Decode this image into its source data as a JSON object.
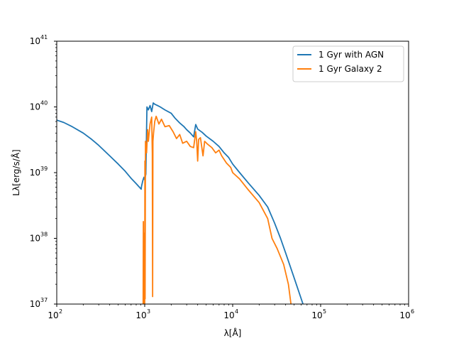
{
  "chart_data": {
    "type": "line",
    "title": "",
    "xlabel": "λ[Å]",
    "ylabel": "Lλ[erg/s/Å]",
    "xscale": "log",
    "yscale": "log",
    "xlim": [
      100,
      1000000
    ],
    "ylim": [
      1e+37,
      1e+41
    ],
    "grid": false,
    "legend_position": "top-right",
    "x_ticks": [
      {
        "value": 100,
        "base": "10",
        "exp": "2"
      },
      {
        "value": 1000,
        "base": "10",
        "exp": "3"
      },
      {
        "value": 10000,
        "base": "10",
        "exp": "4"
      },
      {
        "value": 100000,
        "base": "10",
        "exp": "5"
      },
      {
        "value": 1000000,
        "base": "10",
        "exp": "6"
      }
    ],
    "y_ticks": [
      {
        "value": 1e+37,
        "base": "10",
        "exp": "37"
      },
      {
        "value": 1e+38,
        "base": "10",
        "exp": "38"
      },
      {
        "value": 1e+39,
        "base": "10",
        "exp": "39"
      },
      {
        "value": 1e+40,
        "base": "10",
        "exp": "40"
      },
      {
        "value": 1e+41,
        "base": "10",
        "exp": "41"
      }
    ],
    "series": [
      {
        "name": "1 Gyr with AGN",
        "color": "#1f77b4",
        "points": [
          [
            100,
            6.3e+39
          ],
          [
            120,
            5.8e+39
          ],
          [
            150,
            5e+39
          ],
          [
            200,
            4e+39
          ],
          [
            250,
            3.2e+39
          ],
          [
            300,
            2.6e+39
          ],
          [
            400,
            1.8e+39
          ],
          [
            500,
            1.35e+39
          ],
          [
            600,
            1.05e+39
          ],
          [
            700,
            8.2e+38
          ],
          [
            800,
            6.8e+38
          ],
          [
            912,
            5.6e+38
          ],
          [
            920,
            6.2e+38
          ],
          [
            950,
            7.5e+38
          ],
          [
            980,
            8.5e+38
          ],
          [
            1000,
            7.8e+38
          ],
          [
            1030,
            9.5e+38
          ],
          [
            1060,
            1e+40
          ],
          [
            1100,
            9e+39
          ],
          [
            1150,
            1.05e+40
          ],
          [
            1200,
            8.5e+39
          ],
          [
            1250,
            1.15e+40
          ],
          [
            1300,
            1.1e+40
          ],
          [
            1400,
            1.05e+40
          ],
          [
            1500,
            1e+40
          ],
          [
            1700,
            9e+39
          ],
          [
            2000,
            8e+39
          ],
          [
            2200,
            6.8e+39
          ],
          [
            2500,
            5.7e+39
          ],
          [
            2800,
            5e+39
          ],
          [
            3000,
            4.5e+39
          ],
          [
            3300,
            4e+39
          ],
          [
            3600,
            3.5e+39
          ],
          [
            3800,
            5.4e+39
          ],
          [
            4000,
            4.6e+39
          ],
          [
            4500,
            4.1e+39
          ],
          [
            5000,
            3.6e+39
          ],
          [
            6000,
            3e+39
          ],
          [
            7000,
            2.5e+39
          ],
          [
            8000,
            2e+39
          ],
          [
            9000,
            1.7e+39
          ],
          [
            10000,
            1.35e+39
          ],
          [
            12000,
            1e+39
          ],
          [
            15000,
            7e+38
          ],
          [
            20000,
            4.5e+38
          ],
          [
            25000,
            3e+38
          ],
          [
            30000,
            1.7e+38
          ],
          [
            35000,
            1e+38
          ],
          [
            40000,
            6e+37
          ],
          [
            50000,
            2.5e+37
          ],
          [
            63000,
            1e+37
          ]
        ]
      },
      {
        "name": "1 Gyr Galaxy 2",
        "color": "#ff7f0e",
        "points": [
          [
            960,
            1e+37
          ],
          [
            965,
            1.8e+38
          ],
          [
            975,
            1e+37
          ],
          [
            990,
            1.2e+38
          ],
          [
            1000,
            1e+37
          ],
          [
            1005,
            1.5e+39
          ],
          [
            1010,
            1.2e+37
          ],
          [
            1020,
            3e+39
          ],
          [
            1050,
            2e+39
          ],
          [
            1080,
            4.5e+39
          ],
          [
            1100,
            3e+39
          ],
          [
            1150,
            5.5e+39
          ],
          [
            1200,
            7e+39
          ],
          [
            1220,
            2e+39
          ],
          [
            1230,
            1.3e+37
          ],
          [
            1240,
            3e+39
          ],
          [
            1260,
            4e+39
          ],
          [
            1300,
            6e+39
          ],
          [
            1350,
            7.2e+39
          ],
          [
            1450,
            5.5e+39
          ],
          [
            1550,
            6.5e+39
          ],
          [
            1700,
            5e+39
          ],
          [
            1900,
            5.2e+39
          ],
          [
            2100,
            4.2e+39
          ],
          [
            2300,
            3.3e+39
          ],
          [
            2500,
            3.8e+39
          ],
          [
            2700,
            2.8e+39
          ],
          [
            3000,
            3e+39
          ],
          [
            3300,
            2.5e+39
          ],
          [
            3600,
            2.4e+39
          ],
          [
            3800,
            4.2e+39
          ],
          [
            3900,
            3e+39
          ],
          [
            4000,
            1.5e+39
          ],
          [
            4100,
            3.2e+39
          ],
          [
            4300,
            3.4e+39
          ],
          [
            4600,
            1.8e+39
          ],
          [
            4800,
            3e+39
          ],
          [
            5200,
            2.7e+39
          ],
          [
            5800,
            2.4e+39
          ],
          [
            6400,
            2e+39
          ],
          [
            7000,
            2.2e+39
          ],
          [
            7500,
            1.8e+39
          ],
          [
            8500,
            1.4e+39
          ],
          [
            9500,
            1.2e+39
          ],
          [
            10000,
            1e+39
          ],
          [
            12000,
            8e+38
          ],
          [
            15000,
            5.5e+38
          ],
          [
            20000,
            3.5e+38
          ],
          [
            25000,
            2e+38
          ],
          [
            28000,
            1e+38
          ],
          [
            32000,
            7e+37
          ],
          [
            38000,
            4e+37
          ],
          [
            43000,
            2e+37
          ],
          [
            46000,
            1e+37
          ]
        ]
      }
    ]
  }
}
